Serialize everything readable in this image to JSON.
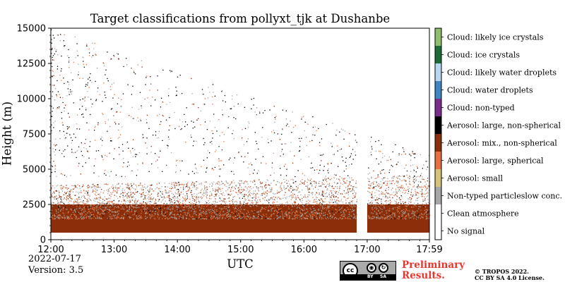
{
  "chart_data": {
    "type": "heatmap",
    "title": "Target classifications from pollyxt_tjk at Dushanbe",
    "xlabel": "UTC",
    "ylabel": "Height (m)",
    "x_range": [
      "12:00",
      "17:59"
    ],
    "x_ticks": [
      "12:00",
      "13:00",
      "14:00",
      "15:00",
      "16:00",
      "17:00",
      "17:59"
    ],
    "ylim": [
      0,
      15000
    ],
    "y_ticks": [
      0,
      2500,
      5000,
      7500,
      10000,
      12500,
      15000
    ],
    "data_gap": [
      "16:50",
      "17:00"
    ],
    "legend_placement": "right colorbar",
    "classes": [
      {
        "label": "No signal",
        "color": "#ffffff"
      },
      {
        "label": "Clean atmosphere",
        "color": "#ffffff"
      },
      {
        "label": "Non-typed particleslow conc.",
        "color": "#a6a6a6"
      },
      {
        "label": "Aerosol: small",
        "color": "#d7c27a"
      },
      {
        "label": "Aerosol: large, spherical",
        "color": "#e8703f"
      },
      {
        "label": "Aerosol: mix., non-spherical",
        "color": "#8a2f0a"
      },
      {
        "label": "Aerosol: large, non-spherical",
        "color": "#000000"
      },
      {
        "label": "Cloud: non-typed",
        "color": "#7b2d8e"
      },
      {
        "label": "Cloud: water droplets",
        "color": "#3f85c6"
      },
      {
        "label": "Cloud: likely water droplets",
        "color": "#b7d6f2"
      },
      {
        "label": "Cloud: ice crystals",
        "color": "#1d6b36"
      },
      {
        "label": "Cloud: likely ice crystals",
        "color": "#8fbf6a"
      }
    ],
    "layers": [
      {
        "class": "Aerosol: mix., non-spherical",
        "height_range_m": [
          500,
          2500
        ],
        "description_value": "dominant"
      },
      {
        "class": "Non-typed particleslow conc.",
        "height_range_m": [
          1500,
          4500
        ]
      },
      {
        "class": "Aerosol: large, spherical",
        "height_range_m": [
          2000,
          4500
        ]
      },
      {
        "class": "Aerosol: large, non-spherical",
        "height_range_m": [
          3000,
          15000
        ]
      }
    ]
  },
  "footer": {
    "date": "2022-07-17",
    "version": "Version: 3.5",
    "preliminary_line1": "Preliminary",
    "preliminary_line2": "Results.",
    "copyright_line1": "© TROPOS 2022.",
    "copyright_line2": "CC BY SA 4.0 License.",
    "cc_label": "cc",
    "by_label": "BY",
    "sa_label": "SA"
  }
}
